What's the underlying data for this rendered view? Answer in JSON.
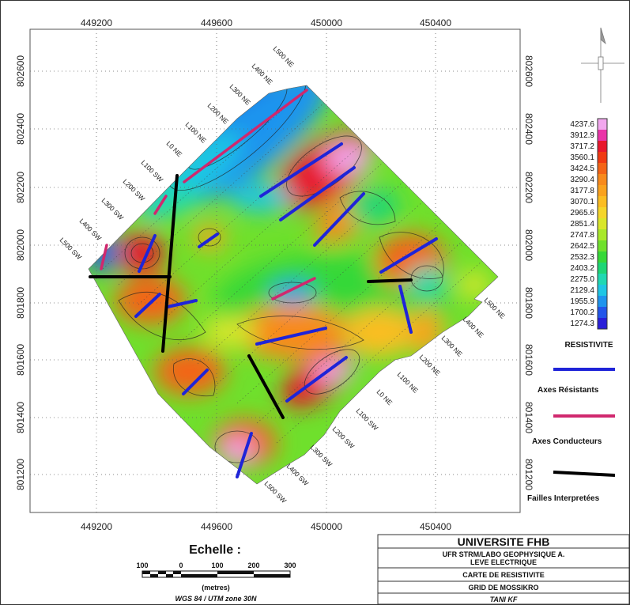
{
  "axes": {
    "x_ticks": [
      "449200",
      "449600",
      "450000",
      "450400"
    ],
    "y_ticks": [
      "802600",
      "802400",
      "802200",
      "802000",
      "801800",
      "801600",
      "801400",
      "801200"
    ]
  },
  "profile_lines": {
    "left": [
      "L500 NE",
      "L400 NE",
      "L300 NE",
      "L200 NE",
      "L100 NE",
      "L0 NE",
      "L100 SW",
      "L200 SW",
      "L300 SW",
      "L400 SW",
      "L500 SW"
    ],
    "right": [
      "L500 NE",
      "L400 NE",
      "L300 NE",
      "L200 NE",
      "L100 NE",
      "L0 NE",
      "L100 SW",
      "L200 SW",
      "L300 SW",
      "L400 SW",
      "L500 SW"
    ]
  },
  "colorbar": {
    "values": [
      "4237.6",
      "3912.9",
      "3717.2",
      "3560.1",
      "3424.5",
      "3290.4",
      "3177.8",
      "3070.1",
      "2965.6",
      "2851.4",
      "2747.8",
      "2642.5",
      "2532.3",
      "2403.2",
      "2275.0",
      "2129.4",
      "1955.9",
      "1700.2",
      "1274.3"
    ],
    "colors": [
      "#f2a7ee",
      "#ea34a8",
      "#e8172c",
      "#f03a12",
      "#f46416",
      "#f88a1c",
      "#faa21e",
      "#fbbd22",
      "#f4d52a",
      "#d9e62a",
      "#a8e82a",
      "#6fe02c",
      "#36d838",
      "#1dd675",
      "#20d8b2",
      "#1fc6e4",
      "#1f94ee",
      "#2356ea",
      "#2a1fd8"
    ],
    "title": "RESISTIVITE"
  },
  "legend": {
    "items": [
      {
        "label": "Axes Résistants",
        "color": "#1f24d8"
      },
      {
        "label": "Axes Conducteurs",
        "color": "#d0286e"
      },
      {
        "label": "Failles Interpretées",
        "color": "#000000"
      }
    ]
  },
  "scale": {
    "title": "Echelle :",
    "labels": [
      "100",
      "0",
      "100",
      "200",
      "300"
    ],
    "unit": "(metres)",
    "projection": "WGS 84 / UTM zone 30N"
  },
  "title_block": {
    "university": "UNIVERSITE FHB",
    "lab_line1": "UFR STRM/LABO GEOPHYSIQUE A.",
    "lab_line2": "LEVE ELECTRIQUE",
    "map_title": "CARTE DE RESISTIVITE",
    "grid": "GRID DE MOSSIKRO",
    "author": "TANI KF"
  }
}
